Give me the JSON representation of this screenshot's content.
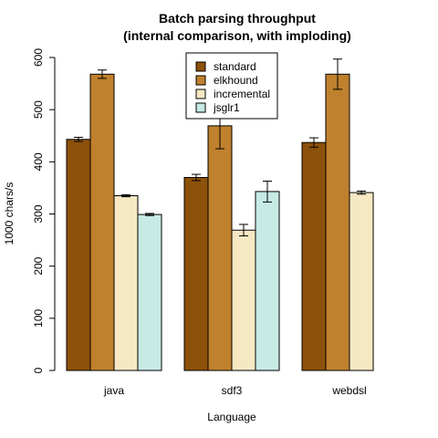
{
  "chart_data": {
    "type": "bar",
    "title": "Batch parsing throughput",
    "subtitle": "(internal comparison, with imploding)",
    "xlabel": "Language",
    "ylabel": "1000 chars/s",
    "ylim": [
      0,
      600
    ],
    "yticks": [
      0,
      100,
      200,
      300,
      400,
      500,
      600
    ],
    "categories": [
      "java",
      "sdf3",
      "webdsl"
    ],
    "legend_position": "top-center",
    "series": [
      {
        "name": "standard",
        "color": "#8C510A",
        "values": [
          443,
          370,
          437
        ],
        "errors": [
          4,
          6,
          9
        ]
      },
      {
        "name": "elkhound",
        "color": "#BF812D",
        "values": [
          568,
          469,
          568
        ],
        "errors": [
          8,
          44,
          29
        ]
      },
      {
        "name": "incremental",
        "color": "#F6E8C3",
        "values": [
          335,
          269,
          341
        ],
        "errors": [
          2,
          11,
          3
        ]
      },
      {
        "name": "jsglr1",
        "color": "#C7EAE5",
        "values": [
          299,
          343,
          null
        ],
        "errors": [
          2,
          20,
          null
        ]
      }
    ]
  }
}
